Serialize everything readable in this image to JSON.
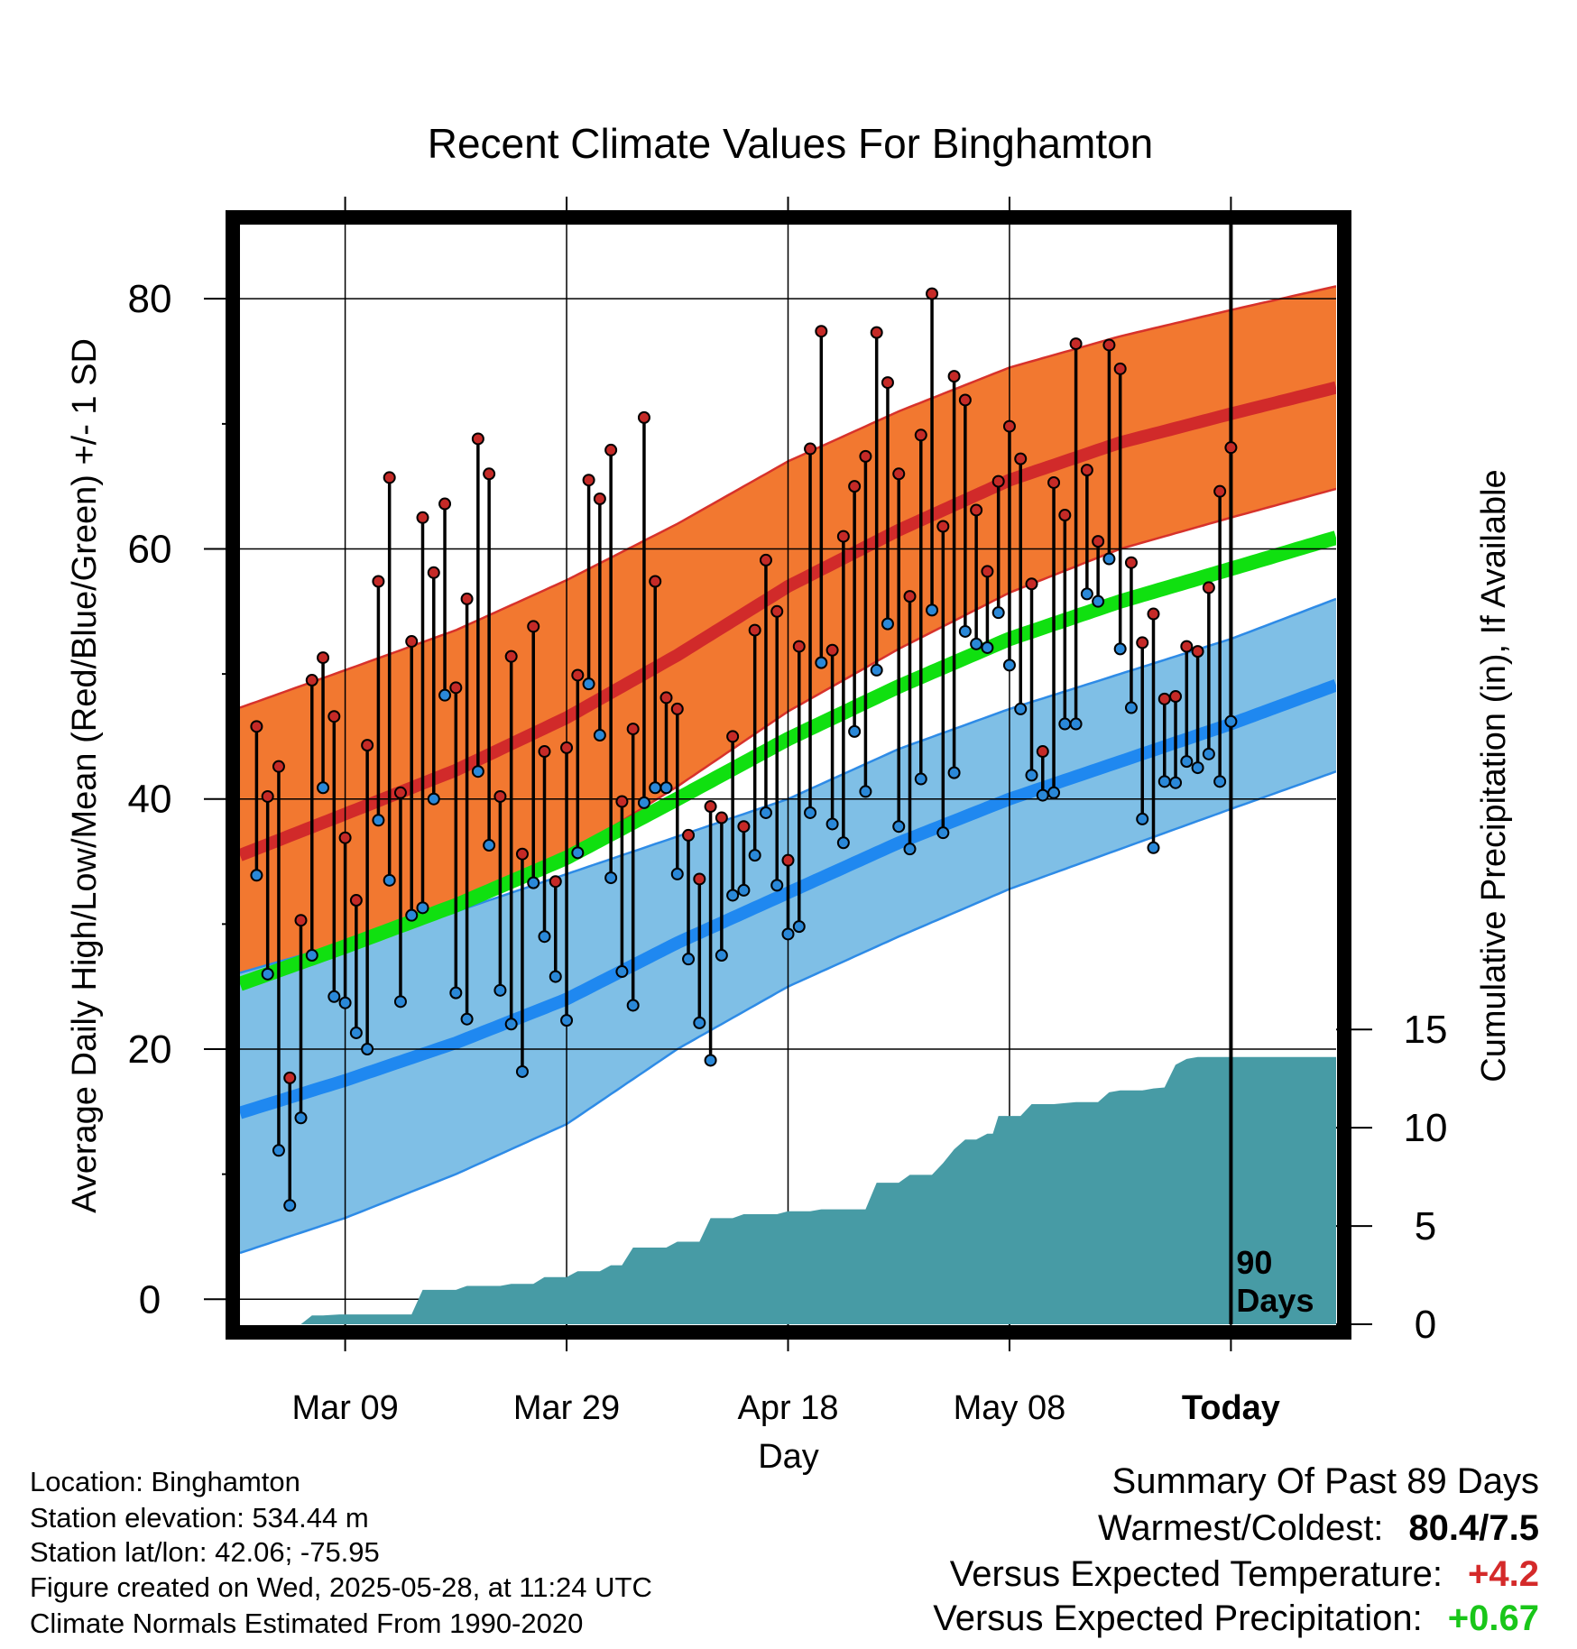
{
  "colors": {
    "high_band": "#f27830",
    "high_band_edge": "#d7322b",
    "high_mean": "#d12a2a",
    "low_band": "#7fbfe6",
    "low_band_edge": "#2e8be6",
    "low_mean": "#1f88f0",
    "mean": "#10e010",
    "precip": "#479ba5",
    "high_dot": "#c52a27",
    "low_dot": "#2a88d8",
    "temp_anomaly": "#d42a2a",
    "precip_anomaly": "#19c619"
  },
  "chart_data": {
    "type": "line",
    "title": "Recent Climate Values For Binghamton",
    "xlabel": "Day",
    "ylabel_left": "Average Daily High/Low/Mean (Red/Blue/Green) +/- 1 SD",
    "ylabel_right": "Cumulative Precipitation (in), If Available",
    "x_day_range": [
      -89.5,
      9.5
    ],
    "ylim_temperature": [
      -2,
      86
    ],
    "ylim_precipitation": [
      0,
      56
    ],
    "left_ticks": [
      "0",
      "20",
      "40",
      "60",
      "80"
    ],
    "right_ticks": [
      "0",
      "5",
      "10",
      "15"
    ],
    "x_ticks": [
      {
        "day": -80,
        "label": "Mar 09"
      },
      {
        "day": -60,
        "label": "Mar 29"
      },
      {
        "day": -40,
        "label": "Apr 18"
      },
      {
        "day": -20,
        "label": "May 08"
      },
      {
        "day": 0,
        "label": "Today"
      }
    ],
    "today_marker": {
      "day": 0,
      "label_line1": "90",
      "label_line2": "Days"
    },
    "normal_day_offsets": [
      -89.5,
      -80,
      -70,
      -60,
      -50,
      -40,
      -30,
      -20,
      -10,
      0,
      9.5
    ],
    "normal_high": [
      35.5,
      38.8,
      42.3,
      46.5,
      51.5,
      57.0,
      61.5,
      65.5,
      68.5,
      70.8,
      72.9
    ],
    "normal_high_sd": [
      11.8,
      11.5,
      11.2,
      11.0,
      10.5,
      10.0,
      9.5,
      9.0,
      8.5,
      8.3,
      8.1
    ],
    "normal_low": [
      14.9,
      17.5,
      20.5,
      24.0,
      28.5,
      32.5,
      36.5,
      40.0,
      43.0,
      46.0,
      49.1
    ],
    "normal_low_sd": [
      11.2,
      11.0,
      10.5,
      10.0,
      8.5,
      7.5,
      7.5,
      7.2,
      7.0,
      6.8,
      6.9
    ],
    "normal_mean": [
      25.2,
      28.2,
      31.5,
      35.3,
      40.0,
      44.8,
      49.0,
      52.8,
      55.8,
      58.4,
      60.9
    ],
    "daily_high": [
      45.8,
      40.2,
      42.6,
      17.7,
      30.3,
      49.5,
      51.3,
      46.6,
      36.9,
      31.9,
      44.3,
      57.4,
      65.7,
      40.5,
      52.6,
      62.5,
      58.1,
      63.6,
      48.9,
      56.0,
      68.8,
      66.0,
      40.2,
      51.4,
      35.6,
      53.8,
      43.8,
      33.4,
      44.1,
      49.9,
      65.5,
      64.0,
      67.9,
      39.8,
      45.6,
      70.5,
      57.4,
      48.1,
      47.2,
      37.1,
      33.6,
      39.4,
      38.5,
      45.0,
      37.8,
      53.5,
      59.1,
      55.0,
      35.1,
      52.2,
      68.0,
      77.4,
      51.9,
      61.0,
      65.0,
      67.4,
      77.3,
      73.3,
      66.0,
      56.2,
      69.1,
      80.4,
      61.8,
      73.8,
      71.9,
      63.1,
      58.2,
      65.4,
      69.8,
      67.2,
      57.2,
      43.8,
      65.3,
      62.7,
      76.4,
      66.3,
      60.6,
      76.3,
      74.4,
      58.9,
      52.5,
      54.8,
      48.0,
      48.2,
      52.2,
      51.8,
      56.9,
      64.6,
      68.1
    ],
    "daily_low": [
      33.9,
      26.0,
      11.9,
      7.5,
      14.5,
      27.5,
      40.9,
      24.2,
      23.7,
      21.3,
      20.0,
      38.3,
      33.5,
      23.8,
      30.7,
      31.3,
      40.0,
      48.3,
      24.5,
      22.4,
      42.2,
      36.3,
      24.7,
      22.0,
      18.2,
      33.3,
      29.0,
      25.8,
      22.3,
      35.7,
      49.2,
      45.1,
      33.7,
      26.2,
      23.5,
      39.7,
      40.9,
      40.9,
      34.0,
      27.2,
      22.1,
      19.1,
      27.5,
      32.3,
      32.7,
      35.5,
      38.9,
      33.1,
      29.2,
      29.8,
      38.9,
      50.9,
      38.0,
      36.5,
      45.4,
      40.6,
      50.3,
      54.0,
      37.8,
      36.0,
      41.6,
      55.1,
      37.3,
      42.1,
      53.4,
      52.4,
      52.1,
      54.9,
      50.7,
      47.2,
      41.9,
      40.3,
      40.5,
      46.0,
      46.0,
      56.4,
      55.8,
      59.2,
      52.0,
      47.3,
      38.4,
      36.1,
      41.4,
      41.3,
      43.0,
      42.5,
      43.6,
      41.4,
      46.2
    ],
    "precip_cum_steps": [
      [
        -89.5,
        0
      ],
      [
        -84,
        0
      ],
      [
        -83,
        0.45
      ],
      [
        -82,
        0.45
      ],
      [
        -80.5,
        0.5
      ],
      [
        -78,
        0.5
      ],
      [
        -77,
        0.5
      ],
      [
        -74,
        0.5
      ],
      [
        -73,
        1.75
      ],
      [
        -70,
        1.75
      ],
      [
        -69,
        1.95
      ],
      [
        -66,
        1.95
      ],
      [
        -65,
        2.05
      ],
      [
        -63,
        2.05
      ],
      [
        -62,
        2.4
      ],
      [
        -60,
        2.4
      ],
      [
        -59,
        2.7
      ],
      [
        -57,
        2.7
      ],
      [
        -56,
        3.0
      ],
      [
        -55,
        3.0
      ],
      [
        -54,
        3.9
      ],
      [
        -51,
        3.9
      ],
      [
        -50,
        4.2
      ],
      [
        -48,
        4.2
      ],
      [
        -47,
        5.4
      ],
      [
        -45,
        5.4
      ],
      [
        -44,
        5.6
      ],
      [
        -41,
        5.6
      ],
      [
        -40,
        5.75
      ],
      [
        -38,
        5.75
      ],
      [
        -37,
        5.85
      ],
      [
        -33,
        5.85
      ],
      [
        -32,
        7.2
      ],
      [
        -30,
        7.2
      ],
      [
        -29,
        7.6
      ],
      [
        -27,
        7.6
      ],
      [
        -26,
        8.2
      ],
      [
        -25,
        8.9
      ],
      [
        -24,
        9.4
      ],
      [
        -23,
        9.4
      ],
      [
        -22,
        9.7
      ],
      [
        -21.5,
        9.7
      ],
      [
        -21,
        10.6
      ],
      [
        -20,
        10.6
      ],
      [
        -19,
        10.6
      ],
      [
        -18,
        11.2
      ],
      [
        -16,
        11.2
      ],
      [
        -14,
        11.3
      ],
      [
        -12,
        11.3
      ],
      [
        -11,
        11.8
      ],
      [
        -10,
        11.9
      ],
      [
        -8,
        11.9
      ],
      [
        -7,
        12.0
      ],
      [
        -6,
        12.05
      ],
      [
        -5,
        13.2
      ],
      [
        -4,
        13.5
      ],
      [
        -3,
        13.6
      ],
      [
        0,
        13.6
      ],
      [
        9.5,
        13.6
      ]
    ]
  },
  "info": {
    "location": "Location: Binghamton",
    "elevation": "Station elevation: 534.44 m",
    "latlon": "Station lat/lon: 42.06; -75.95",
    "created": "Figure created on Wed, 2025-05-28, at 11:24 UTC",
    "normals": "Climate Normals Estimated From 1990-2020"
  },
  "summary": {
    "title": "Summary Of Past 89 Days",
    "warm_cold_label": "Warmest/Coldest:",
    "warm_cold_value": "80.4/7.5",
    "temp_label": "Versus Expected Temperature:",
    "temp_value": "+4.2",
    "precip_label": "Versus Expected Precipitation:",
    "precip_value": "+0.67"
  }
}
